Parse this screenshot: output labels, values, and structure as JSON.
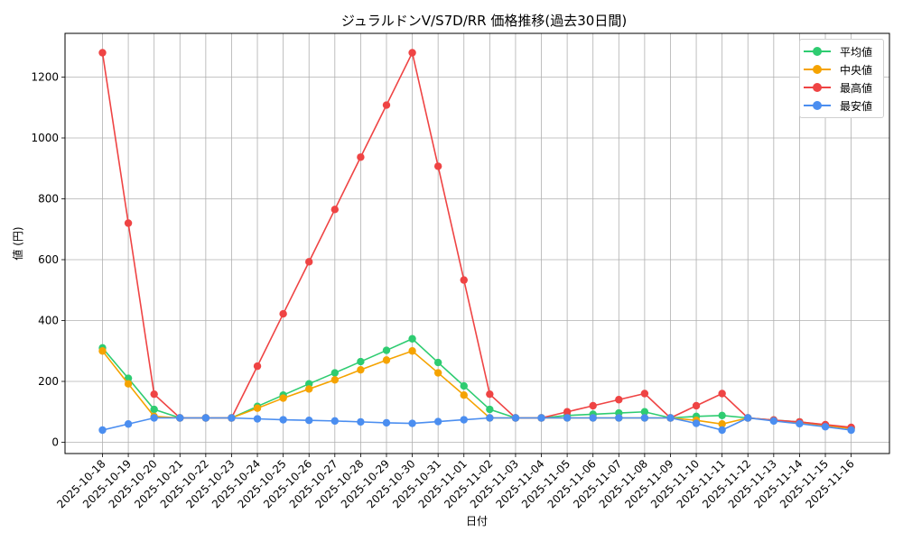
{
  "chart_data": {
    "type": "line",
    "title": "ジュラルドンV/S7D/RR 価格推移(過去30日間)",
    "xlabel": "日付",
    "ylabel": "値 (円)",
    "ylim": [
      -40,
      1340
    ],
    "yticks": [
      0,
      200,
      400,
      600,
      800,
      1000,
      1200
    ],
    "grid": true,
    "legend_position": "top-right",
    "x": [
      "2025-10-18",
      "2025-10-19",
      "2025-10-20",
      "2025-10-21",
      "2025-10-22",
      "2025-10-23",
      "2025-10-24",
      "2025-10-25",
      "2025-10-26",
      "2025-10-27",
      "2025-10-28",
      "2025-10-29",
      "2025-10-30",
      "2025-10-31",
      "2025-11-01",
      "2025-11-02",
      "2025-11-03",
      "2025-11-04",
      "2025-11-05",
      "2025-11-06",
      "2025-11-07",
      "2025-11-08",
      "2025-11-09",
      "2025-11-10",
      "2025-11-11",
      "2025-11-12",
      "2025-11-13",
      "2025-11-14",
      "2025-11-15",
      "2025-11-16"
    ],
    "series": [
      {
        "name": "平均値",
        "color": "#2ecc71",
        "values": [
          310,
          210,
          108,
          80,
          80,
          80,
          118,
          155,
          192,
          228,
          265,
          302,
          340,
          262,
          185,
          108,
          80,
          80,
          88,
          92,
          96,
          100,
          80,
          85,
          88,
          80,
          73,
          67,
          57,
          47
        ]
      },
      {
        "name": "中央値",
        "color": "#f5a300",
        "values": [
          300,
          192,
          85,
          80,
          80,
          80,
          112,
          145,
          175,
          205,
          238,
          270,
          300,
          228,
          155,
          80,
          80,
          80,
          80,
          80,
          80,
          80,
          80,
          72,
          60,
          80,
          72,
          65,
          55,
          45
        ]
      },
      {
        "name": "最高値",
        "color": "#ef4444",
        "values": [
          1280,
          720,
          158,
          80,
          80,
          80,
          250,
          422,
          593,
          765,
          937,
          1108,
          1280,
          907,
          533,
          158,
          80,
          80,
          100,
          120,
          140,
          160,
          80,
          120,
          160,
          80,
          73,
          67,
          58,
          49
        ]
      },
      {
        "name": "最安値",
        "color": "#4b8ef0",
        "values": [
          40,
          60,
          80,
          80,
          80,
          80,
          77,
          74,
          72,
          70,
          67,
          64,
          62,
          68,
          74,
          80,
          80,
          80,
          80,
          80,
          80,
          80,
          80,
          62,
          40,
          80,
          70,
          61,
          51,
          40
        ]
      }
    ]
  }
}
